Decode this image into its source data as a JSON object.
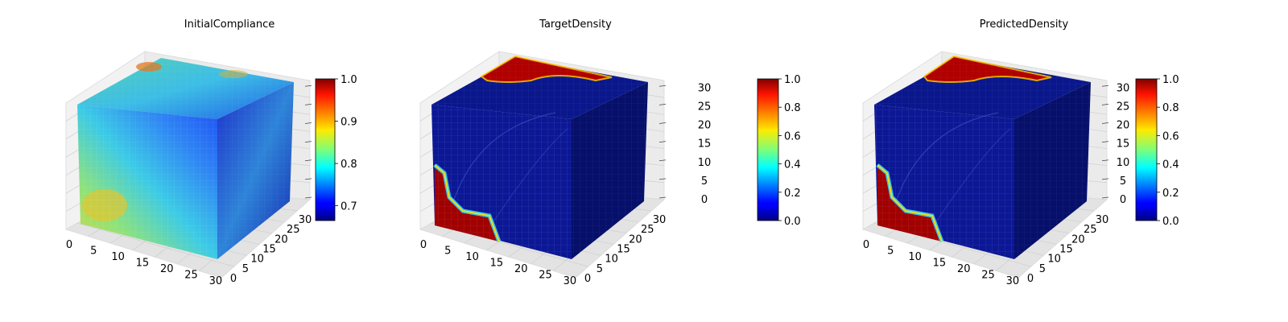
{
  "chart_data": [
    {
      "type": "heatmap",
      "subtype": "3d-voxel-cube",
      "title": "InitialCompliance",
      "colormap": "jet",
      "axes": {
        "x": {
          "ticks": [
            "0",
            "5",
            "10",
            "15",
            "20",
            "25",
            "30"
          ],
          "range": [
            0,
            32
          ]
        },
        "y": {
          "ticks": [
            "0",
            "5",
            "10",
            "15",
            "20",
            "25",
            "30"
          ],
          "range": [
            0,
            32
          ]
        },
        "z": {
          "ticks": [
            "0",
            "5",
            "10",
            "15",
            "20",
            "25",
            "30"
          ],
          "range": [
            0,
            32
          ],
          "tick_labels_visible": false
        }
      },
      "colorbar": {
        "min": 0.665,
        "max": 1.0,
        "ticks": [
          "0.7",
          "0.8",
          "0.9",
          "1.0"
        ],
        "tick_values": [
          0.7,
          0.8,
          0.9,
          1.0
        ]
      },
      "grid": true
    },
    {
      "type": "heatmap",
      "subtype": "3d-voxel-cube",
      "title": "TargetDensity",
      "colormap": "jet",
      "axes": {
        "x": {
          "ticks": [
            "0",
            "5",
            "10",
            "15",
            "20",
            "25",
            "30"
          ],
          "range": [
            0,
            32
          ]
        },
        "y": {
          "ticks": [
            "0",
            "5",
            "10",
            "15",
            "20",
            "25",
            "30"
          ],
          "range": [
            0,
            32
          ]
        },
        "z": {
          "ticks": [
            "0",
            "5",
            "10",
            "15",
            "20",
            "25",
            "30"
          ],
          "range": [
            0,
            32
          ]
        }
      },
      "colorbar": {
        "min": 0.0,
        "max": 1.0,
        "ticks": [
          "0.0",
          "0.2",
          "0.4",
          "0.6",
          "0.8",
          "1.0"
        ],
        "tick_values": [
          0.0,
          0.2,
          0.4,
          0.6,
          0.8,
          1.0
        ]
      },
      "grid": true
    },
    {
      "type": "heatmap",
      "subtype": "3d-voxel-cube",
      "title": "PredictedDensity",
      "colormap": "jet",
      "axes": {
        "x": {
          "ticks": [
            "0",
            "5",
            "10",
            "15",
            "20",
            "25",
            "30"
          ],
          "range": [
            0,
            32
          ]
        },
        "y": {
          "ticks": [
            "0",
            "5",
            "10",
            "15",
            "20",
            "25",
            "30"
          ],
          "range": [
            0,
            32
          ]
        },
        "z": {
          "ticks": [
            "0",
            "5",
            "10",
            "15",
            "20",
            "25",
            "30"
          ],
          "range": [
            0,
            32
          ]
        }
      },
      "colorbar": {
        "min": 0.0,
        "max": 1.0,
        "ticks": [
          "0.0",
          "0.2",
          "0.4",
          "0.6",
          "0.8",
          "1.0"
        ],
        "tick_values": [
          0.0,
          0.2,
          0.4,
          0.6,
          0.8,
          1.0
        ]
      },
      "grid": true
    }
  ]
}
